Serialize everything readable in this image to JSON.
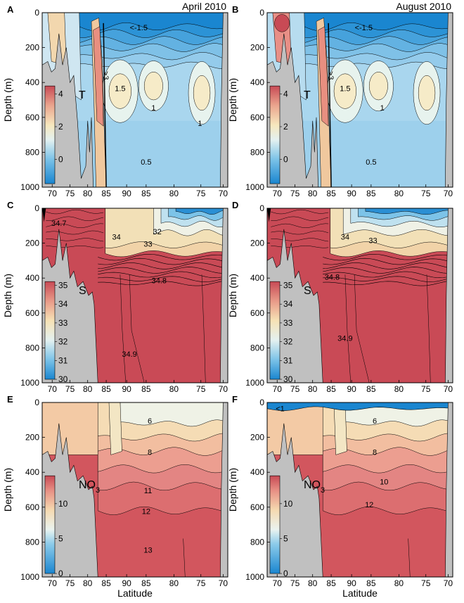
{
  "figure": {
    "panel_letters": [
      "A",
      "B",
      "C",
      "D",
      "E",
      "F"
    ],
    "column_titles": [
      "April 2010",
      "August 2010"
    ],
    "ylabel": "Depth (m)",
    "xlabel": "Latitude",
    "colors": {
      "land": "#c0c0c0",
      "deep_blue": "#1a7fc8",
      "warm_red": "#c84a55"
    }
  },
  "chart_data": [
    {
      "type": "contour",
      "panel": "A",
      "variable": "T",
      "title": "April 2010",
      "ylabel": "Depth (m)",
      "y_ticks": [
        0,
        200,
        400,
        600,
        800,
        1000
      ],
      "ylim": [
        1000,
        0
      ],
      "x_tick_labels": [
        "70",
        "75",
        "80",
        "85",
        "90",
        "85",
        "80",
        "75",
        "70"
      ],
      "colorbar": {
        "ticks": [
          4,
          2,
          0
        ],
        "range": [
          -1.5,
          4.5
        ]
      },
      "contour_labels": [
        "<-1.5",
        ">3",
        "1.5",
        "1",
        "1",
        "0.5"
      ]
    },
    {
      "type": "contour",
      "panel": "B",
      "variable": "T",
      "title": "August 2010",
      "ylabel": "Depth (m)",
      "y_ticks": [
        0,
        200,
        400,
        600,
        800,
        1000
      ],
      "ylim": [
        1000,
        0
      ],
      "x_tick_labels": [
        "70",
        "75",
        "80",
        "85",
        "90",
        "85",
        "80",
        "75",
        "70"
      ],
      "colorbar": {
        "ticks": [
          4,
          2,
          0
        ],
        "range": [
          -1.5,
          4.5
        ]
      },
      "contour_labels": [
        "<-1.5",
        ">3",
        "1.5",
        "1",
        "0.5"
      ]
    },
    {
      "type": "contour",
      "panel": "C",
      "variable": "S",
      "ylabel": "Depth (m)",
      "y_ticks": [
        0,
        200,
        400,
        600,
        800,
        1000
      ],
      "ylim": [
        1000,
        0
      ],
      "x_tick_labels": [
        "70",
        "75",
        "80",
        "85",
        "90",
        "85",
        "80",
        "75",
        "70"
      ],
      "colorbar": {
        "ticks": [
          35,
          34,
          33,
          32,
          31,
          30
        ],
        "range": [
          30,
          35.2
        ]
      },
      "contour_labels": [
        "34.7",
        "34",
        "32",
        "33",
        "34.8",
        "34.9"
      ]
    },
    {
      "type": "contour",
      "panel": "D",
      "variable": "S",
      "ylabel": "Depth (m)",
      "y_ticks": [
        0,
        200,
        400,
        600,
        800,
        1000
      ],
      "ylim": [
        1000,
        0
      ],
      "x_tick_labels": [
        "70",
        "75",
        "80",
        "85",
        "90",
        "85",
        "80",
        "75",
        "70"
      ],
      "colorbar": {
        "ticks": [
          35,
          34,
          33,
          32,
          31,
          30
        ],
        "range": [
          30,
          35.2
        ]
      },
      "contour_labels": [
        "34",
        "33",
        "34.8",
        "34.9"
      ]
    },
    {
      "type": "contour",
      "panel": "E",
      "variable": "NO",
      "variable_sub": "3",
      "ylabel": "Depth (m)",
      "xlabel": "Latitude",
      "y_ticks": [
        0,
        200,
        400,
        600,
        800,
        1000
      ],
      "ylim": [
        1000,
        0
      ],
      "x_tick_labels": [
        "70",
        "75",
        "80",
        "85",
        "90",
        "85",
        "80",
        "75",
        "70"
      ],
      "colorbar": {
        "ticks": [
          10,
          5,
          0
        ],
        "range": [
          0,
          14
        ]
      },
      "contour_labels": [
        "6",
        "8",
        "11",
        "12",
        "13"
      ]
    },
    {
      "type": "contour",
      "panel": "F",
      "variable": "NO",
      "variable_sub": "3",
      "ylabel": "Depth (m)",
      "xlabel": "Latitude",
      "y_ticks": [
        0,
        200,
        400,
        600,
        800,
        1000
      ],
      "ylim": [
        1000,
        0
      ],
      "x_tick_labels": [
        "70",
        "75",
        "80",
        "85",
        "90",
        "85",
        "80",
        "75",
        "70"
      ],
      "colorbar": {
        "ticks": [
          10,
          5,
          0
        ],
        "range": [
          0,
          14
        ]
      },
      "contour_labels": [
        "<1",
        "6",
        "8",
        "10",
        "12"
      ]
    }
  ]
}
